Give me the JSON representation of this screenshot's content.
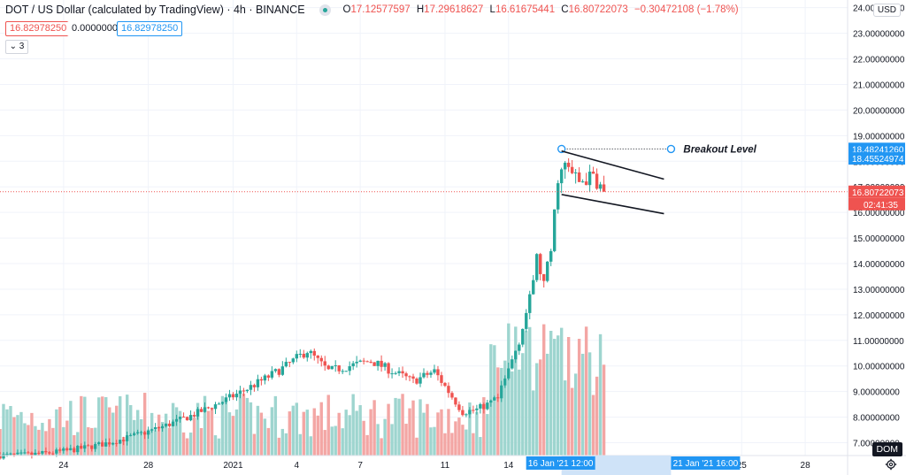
{
  "header": {
    "symbol": "DOT / US Dollar (calculated by TradingView) · 4h · BINANCE",
    "o_label": "O",
    "o_value": "17.12577597",
    "h_label": "H",
    "h_value": "17.29618627",
    "l_label": "L",
    "l_value": "16.61675441",
    "c_label": "C",
    "c_value": "16.80722073",
    "change": "−0.30472108 (−1.78%)"
  },
  "order_bar": {
    "sell": "16.82978250",
    "spread": "0.00000000",
    "buy": "16.82978250"
  },
  "indicators_collapsed": "3",
  "currency": "USD",
  "dom_label": "DOM",
  "colors": {
    "up": "#26a69a",
    "down": "#ef5350",
    "vol_up": "#9ed5cf",
    "vol_down": "#f3a6a4",
    "accent": "#2196f3",
    "grid": "#f0f3fa"
  },
  "chart_data": {
    "type": "candlestick",
    "y_axis": {
      "min": 6.5,
      "max": 24.3,
      "ticks": [
        "7.00000000",
        "8.00000000",
        "9.00000000",
        "10.00000000",
        "11.00000000",
        "12.00000000",
        "13.00000000",
        "14.00000000",
        "15.00000000",
        "16.00000000",
        "17.00000000",
        "18.00000000",
        "19.00000000",
        "20.00000000",
        "21.00000000",
        "22.00000000",
        "23.00000000",
        "24.00000000"
      ]
    },
    "x_axis": {
      "start": "2020-12-21",
      "end": "2021-01-30",
      "ticks": [
        {
          "date": "2020-12-24",
          "label": "24"
        },
        {
          "date": "2020-12-28",
          "label": "28"
        },
        {
          "date": "2021-01-01",
          "label": "2021"
        },
        {
          "date": "2021-01-04",
          "label": "4"
        },
        {
          "date": "2021-01-07",
          "label": "7"
        },
        {
          "date": "2021-01-11",
          "label": "11"
        },
        {
          "date": "2021-01-14",
          "label": "14"
        },
        {
          "date": "2021-01-25",
          "label": "25"
        },
        {
          "date": "2021-01-28",
          "label": "28"
        }
      ],
      "highlight_labels": [
        {
          "date": "2021-01-16 12:00",
          "label": "16 Jan '21  12:00"
        },
        {
          "date": "2021-01-21 16:00",
          "label": "21 Jan '21  16:00"
        }
      ]
    },
    "price_labels": [
      {
        "value": 18.4824126,
        "text": "18.48241260",
        "color": "#2196f3"
      },
      {
        "value": 18.45524974,
        "text": "18.45524974",
        "color": "#2196f3"
      },
      {
        "value": 16.80722073,
        "text": "16.80722073",
        "color": "#ef5350"
      }
    ],
    "countdown": "02:41:35",
    "last_price": 16.80722073,
    "annotations": [
      {
        "type": "horizontal_ray",
        "label": "Breakout Level",
        "price": 18.48,
        "from": "2021-01-16 12:00",
        "to": "2021-01-21 16:00"
      },
      {
        "type": "trendline",
        "from": {
          "date": "2021-01-16 12:00",
          "price": 18.4
        },
        "to": {
          "date": "2021-01-21 08:00",
          "price": 17.3
        }
      },
      {
        "type": "trendline",
        "from": {
          "date": "2021-01-16 12:00",
          "price": 16.7
        },
        "to": {
          "date": "2021-01-21 08:00",
          "price": 15.95
        }
      }
    ],
    "anchors": [
      {
        "date": "2021-01-03 12:00",
        "price": 10.0
      },
      {
        "date": "2021-01-04 12:00",
        "price": 10.6
      },
      {
        "date": "2021-01-05 12:00",
        "price": 9.8
      },
      {
        "date": "2021-01-07 12:00",
        "price": 10.2
      },
      {
        "date": "2021-01-09 12:00",
        "price": 9.4
      },
      {
        "date": "2021-01-10 12:00",
        "price": 9.8
      },
      {
        "date": "2021-01-11 04:00",
        "price": 9.0
      },
      {
        "date": "2021-01-11 20:00",
        "price": 8.2
      },
      {
        "date": "2021-01-12 12:00",
        "price": 8.3
      },
      {
        "date": "2021-01-13 12:00",
        "price": 8.7
      },
      {
        "date": "2021-01-14 12:00",
        "price": 11.0
      },
      {
        "date": "2021-01-15 00:00",
        "price": 12.6
      },
      {
        "date": "2021-01-15 08:00",
        "price": 14.2
      },
      {
        "date": "2021-01-15 16:00",
        "price": 13.2
      },
      {
        "date": "2021-01-16 00:00",
        "price": 14.5
      },
      {
        "date": "2021-01-16 08:00",
        "price": 17.4
      },
      {
        "date": "2021-01-16 16:00",
        "price": 17.8
      },
      {
        "date": "2021-01-17 08:00",
        "price": 17.2
      },
      {
        "date": "2021-01-18 00:00",
        "price": 17.4
      },
      {
        "date": "2021-01-18 12:00",
        "price": 16.8
      }
    ],
    "annotation_ends": [
      "2021-01-21 08:00",
      "2021-01-21 08:00"
    ],
    "data_end": "2021-01-18 12:00"
  }
}
